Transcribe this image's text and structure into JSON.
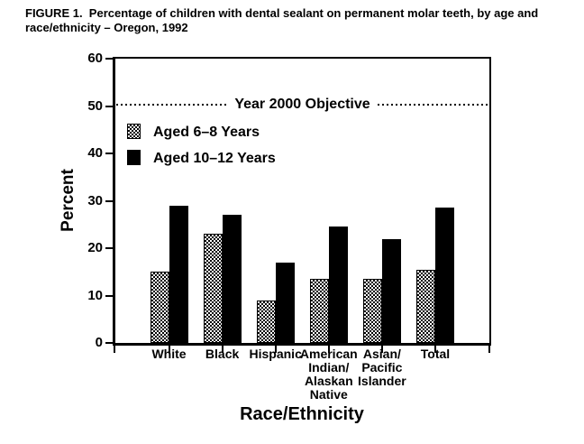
{
  "figure": {
    "title": "FIGURE 1.  Percentage of children with dental sealant on permanent molar teeth, by age and race/ethnicity – Oregon, 1992"
  },
  "chart_data": {
    "type": "bar",
    "title": "Percentage of children with dental sealant on permanent molar teeth, by age and race/ethnicity - Oregon, 1992",
    "categories": [
      "White",
      "Black",
      "Hispanic",
      "American\nIndian/\nAlaskan\nNative",
      "Asian/\nPacific\nIslander",
      "Total"
    ],
    "series": [
      {
        "name": "Aged 6–8 Years",
        "style": "hatched",
        "values": [
          15,
          23,
          9,
          13.5,
          13.5,
          15.5
        ]
      },
      {
        "name": "Aged 10–12 Years",
        "style": "solid",
        "values": [
          29,
          27,
          17,
          24.5,
          22,
          28.5
        ]
      }
    ],
    "xlabel": "Race/Ethnicity",
    "ylabel": "Percent",
    "ylim": [
      0,
      60
    ],
    "yticks": [
      0,
      10,
      20,
      30,
      40,
      50,
      60
    ],
    "reference_line": {
      "value": 50,
      "label": "Year 2000 Objective",
      "style": "dotted"
    },
    "legend_position": "top-left-inside",
    "grid": false,
    "colors": {
      "bar_solid": "#000000",
      "bar_hatched": "black-white-checker",
      "frame": "#000000",
      "background": "#ffffff",
      "text": "#000000"
    }
  }
}
